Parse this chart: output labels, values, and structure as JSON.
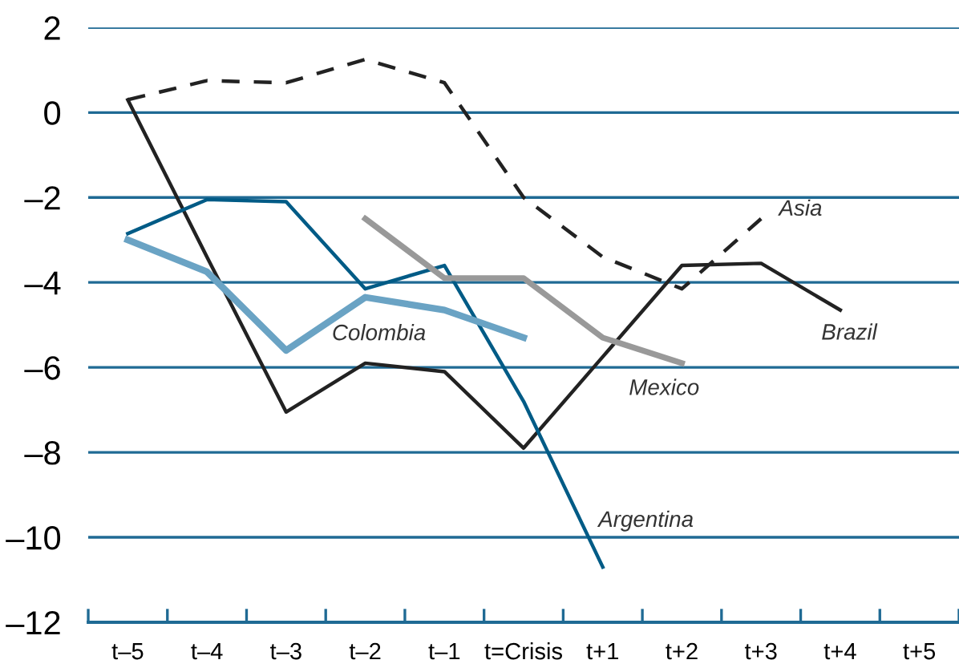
{
  "chart_data": {
    "type": "line",
    "categories": [
      "t–5",
      "t–4",
      "t–3",
      "t–2",
      "t–1",
      "t=Crisis",
      "t+1",
      "t+2",
      "t+3",
      "t+4",
      "t+5"
    ],
    "series": [
      {
        "name": "Asia",
        "color": "#222222",
        "line_style": "dashed",
        "values": [
          0.3,
          0.75,
          0.7,
          1.25,
          0.7,
          -2.0,
          -3.4,
          -4.15,
          -2.5,
          null,
          null
        ]
      },
      {
        "name": "Brazil",
        "color": "#222222",
        "values": [
          0.3,
          -3.4,
          -7.05,
          -5.9,
          -6.1,
          -7.9,
          -5.75,
          -3.6,
          -3.55,
          -4.65,
          null
        ]
      },
      {
        "name": "Argentina",
        "color": "#005b86",
        "values": [
          -2.85,
          -2.05,
          -2.1,
          -4.15,
          -3.6,
          -6.8,
          -10.7,
          null,
          null,
          null,
          null
        ]
      },
      {
        "name": "Colombia",
        "color": "#6aa3c4",
        "values": [
          -3.0,
          -3.75,
          -5.6,
          -4.35,
          -4.65,
          -5.3,
          null,
          null,
          null,
          null,
          null
        ]
      },
      {
        "name": "Mexico",
        "color": "#999999",
        "values": [
          null,
          null,
          null,
          -2.5,
          -3.9,
          -3.9,
          -5.3,
          -5.9,
          null,
          null,
          null
        ]
      }
    ],
    "ylim": [
      -12,
      2
    ],
    "yticks": [
      2,
      0,
      {
        "value": -2,
        "label": "–2"
      },
      {
        "value": -4,
        "label": "–4"
      },
      {
        "value": -6,
        "label": "–6"
      },
      {
        "value": -8,
        "label": "–8"
      },
      {
        "value": -10,
        "label": "–10"
      },
      {
        "value": -12,
        "label": "–12"
      }
    ],
    "grid": "y",
    "marker": "none",
    "legend": false
  }
}
